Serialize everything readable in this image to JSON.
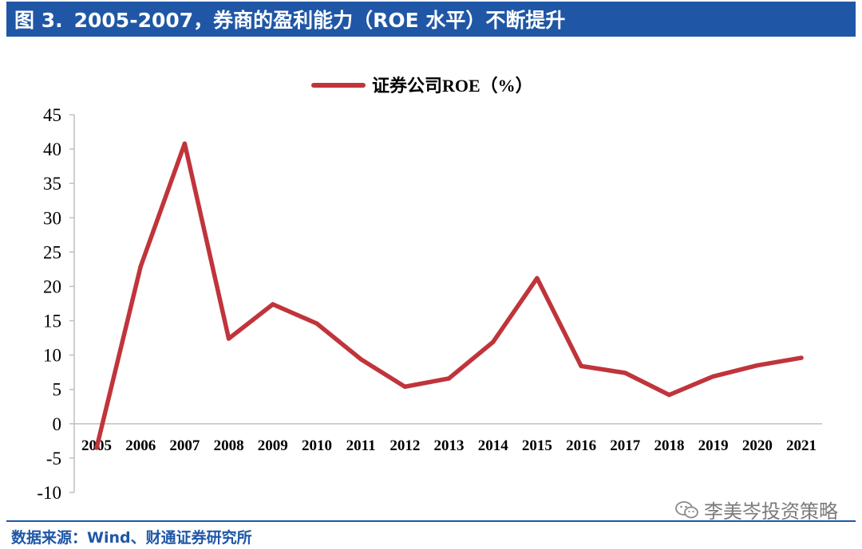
{
  "header": {
    "figure_label": "图 3.",
    "title": "2005-2007，券商的盈利能力（ROE 水平）不断提升"
  },
  "colors": {
    "header_bg": "#1f57a6",
    "line": "#c0343b",
    "axis": "#bfbfbf",
    "source_text": "#1f57a6"
  },
  "chart_data": {
    "type": "line",
    "title": "",
    "xlabel": "",
    "ylabel": "",
    "ylim": [
      -10,
      45
    ],
    "yticks": [
      -10,
      -5,
      0,
      5,
      10,
      15,
      20,
      25,
      30,
      35,
      40,
      45
    ],
    "categories": [
      "2005",
      "2006",
      "2007",
      "2008",
      "2009",
      "2010",
      "2011",
      "2012",
      "2013",
      "2014",
      "2015",
      "2016",
      "2017",
      "2018",
      "2019",
      "2020",
      "2021"
    ],
    "series": [
      {
        "name": "证券公司ROE（%）",
        "values": [
          -3.5,
          22.9,
          40.8,
          12.4,
          17.4,
          14.6,
          9.4,
          5.4,
          6.6,
          11.9,
          21.2,
          8.4,
          7.4,
          4.2,
          6.9,
          8.5,
          9.6
        ]
      }
    ],
    "legend_position": "top-center",
    "grid": false
  },
  "footer": {
    "source": "数据来源：Wind、财通证券研究所",
    "watermark_icon": "wechat-icon",
    "watermark_text": "李美岑投资策略"
  }
}
